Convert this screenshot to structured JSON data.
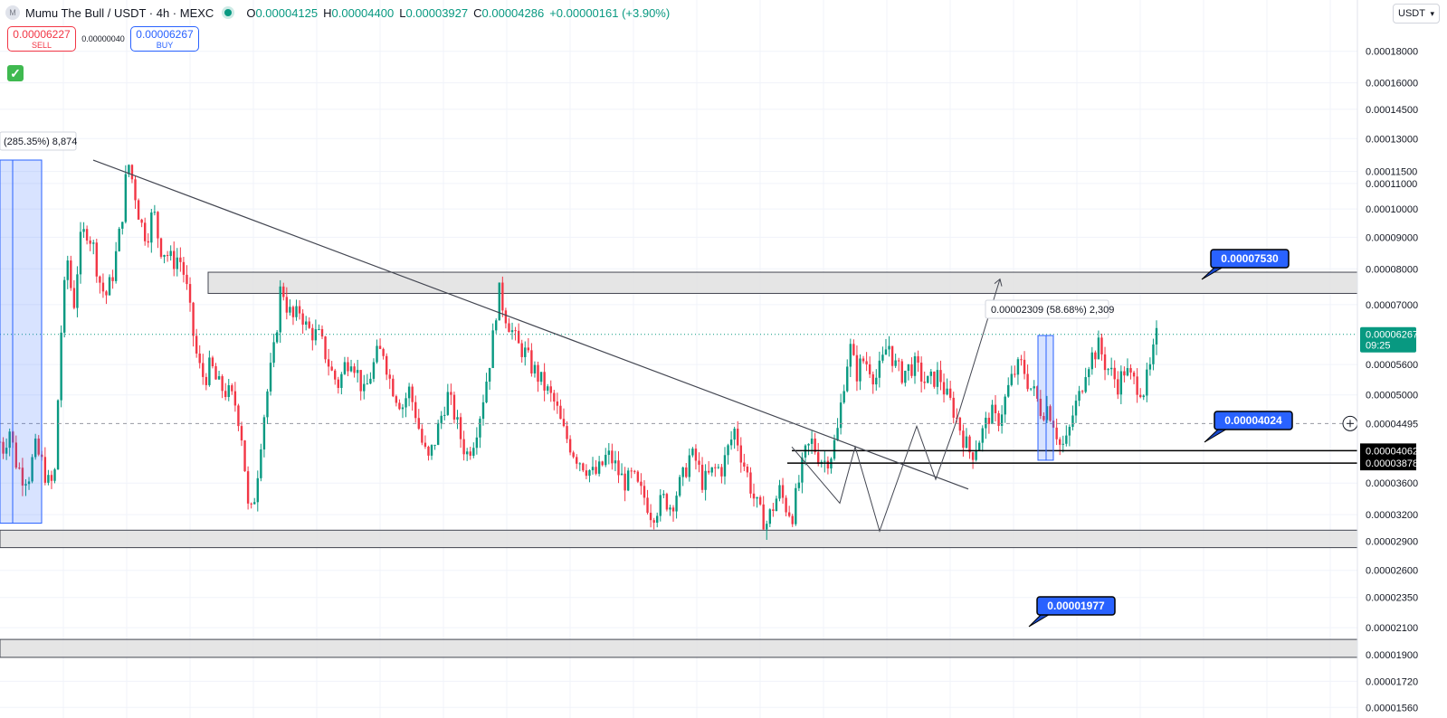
{
  "header": {
    "symbol_title": "Mumu The Bull / USDT · 4h · MEXC",
    "logo_letter": "M",
    "ohlc": {
      "o_label": "O",
      "o": "0.00004125",
      "h_label": "H",
      "h": "0.00004400",
      "l_label": "L",
      "l": "0.00003927",
      "c_label": "C",
      "c": "0.00004286",
      "change": "+0.00000161 (+3.90%)"
    }
  },
  "trade": {
    "sell_price": "0.00006227",
    "sell_label": "SELL",
    "spread": "0.00000040",
    "buy_price": "0.00006267",
    "buy_label": "BUY"
  },
  "currency_selector": {
    "label": "USDT",
    "icon": "chevron-down-icon"
  },
  "colors": {
    "up": "#089981",
    "down": "#f23645",
    "accent": "#2962ff",
    "zone": "#e0e0e0",
    "trendline": "#434651",
    "grid": "#f0f3fa"
  },
  "chart_data": {
    "type": "candlestick",
    "y_scale": "log",
    "ylim": [
      1.52e-05,
      0.000215
    ],
    "grid": true,
    "y_ticks": [
      "0.00018000",
      "0.00016000",
      "0.00014500",
      "0.00013000",
      "0.00011500",
      "0.00011000",
      "0.00010000",
      "0.00009000",
      "0.00008000",
      "0.00007000",
      "0.00005600",
      "0.00005000",
      "0.00003600",
      "0.00003200",
      "0.00002900",
      "0.00002600",
      "0.00002350",
      "0.00002100",
      "0.00001900",
      "0.00001720",
      "0.00001560"
    ],
    "y_tick_values": [
      0.00018,
      0.00016,
      0.000145,
      0.00013,
      0.000115,
      0.00011,
      0.0001,
      9e-05,
      8e-05,
      7e-05,
      5.6e-05,
      5e-05,
      3.6e-05,
      3.2e-05,
      2.9e-05,
      2.6e-05,
      2.35e-05,
      2.1e-05,
      1.9e-05,
      1.72e-05,
      1.56e-05
    ],
    "price_path": [
      [
        0.04,
        4.2e-05
      ],
      [
        0.05,
        4.1e-05
      ],
      [
        0.07,
        4.4e-05
      ],
      [
        0.09,
        3.9e-05
      ],
      [
        0.11,
        3.7e-05
      ],
      [
        0.13,
        3.7e-05
      ],
      [
        0.15,
        4.1e-05
      ],
      [
        0.17,
        3.9e-05
      ],
      [
        0.19,
        3.6e-05
      ],
      [
        0.21,
        3.6e-05
      ],
      [
        0.23,
        6.2e-05
      ],
      [
        0.25,
        8.4e-05
      ],
      [
        0.27,
        6.9e-05
      ],
      [
        0.29,
        8.8e-05
      ],
      [
        0.31,
        9.3e-05
      ],
      [
        0.33,
        8.8e-05
      ],
      [
        0.35,
        7.7e-05
      ],
      [
        0.37,
        7.2e-05
      ],
      [
        0.39,
        7.7e-05
      ],
      [
        0.42,
        9.5e-05
      ],
      [
        0.44,
        0.00012
      ],
      [
        0.46,
        0.000108
      ],
      [
        0.48,
        9.5e-05
      ],
      [
        0.5,
        9e-05
      ],
      [
        0.52,
        0.0001
      ],
      [
        0.54,
        8.7e-05
      ],
      [
        0.56,
        8.5e-05
      ],
      [
        0.58,
        8.2e-05
      ],
      [
        0.6,
        8.4e-05
      ],
      [
        0.62,
        7.7e-05
      ],
      [
        0.64,
        6.5e-05
      ],
      [
        0.66,
        5.6e-05
      ],
      [
        0.68,
        5.3e-05
      ],
      [
        0.7,
        5.6e-05
      ],
      [
        0.72,
        5.2e-05
      ],
      [
        0.74,
        5.1e-05
      ],
      [
        0.76,
        5e-05
      ],
      [
        0.78,
        4.8e-05
      ],
      [
        0.8,
        4.2e-05
      ],
      [
        0.82,
        3.1e-05
      ],
      [
        0.84,
        3.5e-05
      ],
      [
        0.86,
        4.4e-05
      ],
      [
        0.88,
        5.2e-05
      ],
      [
        0.9,
        6e-05
      ],
      [
        0.92,
        7.6e-05
      ],
      [
        0.94,
        6.9e-05
      ],
      [
        0.96,
        6.6e-05
      ],
      [
        0.98,
        6.9e-05
      ],
      [
        1.0,
        6.4e-05
      ],
      [
        1.02,
        6.3e-05
      ],
      [
        1.04,
        6.2e-05
      ],
      [
        1.06,
        5.8e-05
      ],
      [
        1.08,
        5.4e-05
      ],
      [
        1.1,
        5.2e-05
      ],
      [
        1.12,
        5.6e-05
      ],
      [
        1.14,
        5.8e-05
      ],
      [
        1.16,
        5.4e-05
      ],
      [
        1.18,
        5e-05
      ],
      [
        1.2,
        5.4e-05
      ],
      [
        1.22,
        5.8e-05
      ],
      [
        1.24,
        5.9e-05
      ],
      [
        1.26,
        5.3e-05
      ],
      [
        1.28,
        5e-05
      ],
      [
        1.3,
        4.8e-05
      ],
      [
        1.32,
        5.1e-05
      ],
      [
        1.34,
        4.7e-05
      ],
      [
        1.36,
        4.2e-05
      ],
      [
        1.38,
        3.9e-05
      ],
      [
        1.4,
        4.2e-05
      ],
      [
        1.42,
        4.6e-05
      ],
      [
        1.44,
        5e-05
      ],
      [
        1.46,
        4.7e-05
      ],
      [
        1.48,
        4.3e-05
      ],
      [
        1.5,
        4e-05
      ],
      [
        1.52,
        4.2e-05
      ],
      [
        1.54,
        4.6e-05
      ],
      [
        1.56,
        5.2e-05
      ],
      [
        1.58,
        6e-05
      ],
      [
        1.6,
        7.4e-05
      ],
      [
        1.62,
        6.8e-05
      ],
      [
        1.64,
        6.4e-05
      ],
      [
        1.66,
        6e-05
      ],
      [
        1.68,
        5.9e-05
      ],
      [
        1.7,
        5.6e-05
      ],
      [
        1.72,
        5.4e-05
      ],
      [
        1.74,
        5.2e-05
      ],
      [
        1.76,
        5e-05
      ],
      [
        1.78,
        4.8e-05
      ],
      [
        1.8,
        4.4e-05
      ],
      [
        1.82,
        4.2e-05
      ],
      [
        1.84,
        4e-05
      ],
      [
        1.86,
        3.9e-05
      ],
      [
        1.88,
        3.8e-05
      ],
      [
        1.9,
        3.7e-05
      ],
      [
        1.92,
        3.8e-05
      ],
      [
        1.94,
        4e-05
      ],
      [
        1.96,
        3.9e-05
      ],
      [
        1.98,
        3.7e-05
      ],
      [
        2.0,
        3.6e-05
      ],
      [
        2.02,
        3.7e-05
      ],
      [
        2.04,
        3.5e-05
      ],
      [
        2.06,
        3.4e-05
      ],
      [
        2.08,
        3.2e-05
      ],
      [
        2.1,
        3.3e-05
      ],
      [
        2.12,
        3.4e-05
      ],
      [
        2.14,
        3.3e-05
      ],
      [
        2.16,
        3.5e-05
      ],
      [
        2.18,
        3.7e-05
      ],
      [
        2.2,
        4e-05
      ],
      [
        2.22,
        3.9e-05
      ],
      [
        2.24,
        3.6e-05
      ],
      [
        2.26,
        3.7e-05
      ],
      [
        2.28,
        3.8e-05
      ],
      [
        2.3,
        3.8e-05
      ],
      [
        2.32,
        4.1e-05
      ],
      [
        2.34,
        4.4e-05
      ],
      [
        2.36,
        4e-05
      ],
      [
        2.38,
        3.7e-05
      ],
      [
        2.4,
        3.4e-05
      ],
      [
        2.42,
        3.2e-05
      ],
      [
        2.44,
        3.1e-05
      ],
      [
        2.46,
        3.3e-05
      ],
      [
        2.48,
        3.5e-05
      ],
      [
        2.5,
        3.3e-05
      ],
      [
        2.52,
        3.2e-05
      ],
      [
        2.54,
        3.6e-05
      ],
      [
        2.56,
        4e-05
      ],
      [
        2.58,
        4.2e-05
      ],
      [
        2.6,
        4e-05
      ],
      [
        2.62,
        3.9e-05
      ],
      [
        2.64,
        4e-05
      ],
      [
        2.66,
        4.3e-05
      ],
      [
        2.68,
        5.2e-05
      ],
      [
        2.7,
        6e-05
      ],
      [
        2.72,
        5.4e-05
      ],
      [
        2.74,
        5.7e-05
      ],
      [
        2.76,
        5.6e-05
      ],
      [
        2.78,
        5.3e-05
      ],
      [
        2.8,
        5.6e-05
      ],
      [
        2.82,
        6.1e-05
      ],
      [
        2.84,
        5.6e-05
      ],
      [
        2.86,
        5.4e-05
      ],
      [
        2.88,
        5.5e-05
      ],
      [
        2.9,
        5.6e-05
      ],
      [
        2.92,
        5.4e-05
      ],
      [
        2.94,
        5.2e-05
      ],
      [
        2.96,
        5.3e-05
      ],
      [
        2.98,
        5.4e-05
      ],
      [
        3.0,
        5e-05
      ],
      [
        3.02,
        4.8e-05
      ],
      [
        3.04,
        4.5e-05
      ],
      [
        3.06,
        4.2e-05
      ],
      [
        3.08,
        4e-05
      ],
      [
        3.1,
        4.2e-05
      ],
      [
        3.12,
        4.4e-05
      ],
      [
        3.14,
        4.7e-05
      ],
      [
        3.16,
        4.5e-05
      ],
      [
        3.18,
        4.8e-05
      ],
      [
        3.2,
        5.2e-05
      ],
      [
        3.22,
        5.5e-05
      ],
      [
        3.24,
        5.6e-05
      ],
      [
        3.26,
        5.2e-05
      ],
      [
        3.28,
        5e-05
      ],
      [
        3.3,
        4.7e-05
      ],
      [
        3.32,
        4.8e-05
      ],
      [
        3.34,
        4.5e-05
      ],
      [
        3.36,
        4.1e-05
      ],
      [
        3.38,
        4.2e-05
      ],
      [
        3.4,
        4.7e-05
      ],
      [
        3.42,
        5e-05
      ],
      [
        3.44,
        5.6e-05
      ],
      [
        3.46,
        5.8e-05
      ],
      [
        3.48,
        6e-05
      ],
      [
        3.5,
        5.6e-05
      ],
      [
        3.52,
        5.4e-05
      ],
      [
        3.54,
        5.2e-05
      ],
      [
        3.56,
        5.5e-05
      ],
      [
        3.58,
        5.3e-05
      ],
      [
        3.6,
        5.2e-05
      ],
      [
        3.62,
        5.1e-05
      ],
      [
        3.64,
        5.5e-05
      ],
      [
        3.66,
        6.2e-05
      ]
    ],
    "horizontal_zones": [
      {
        "low": 7.3e-05,
        "high": 7.9e-05
      },
      {
        "low": 2.83e-05,
        "high": 3.02e-05
      },
      {
        "low": 1.88e-05,
        "high": 2.01e-05
      }
    ],
    "horizontal_levels": [
      {
        "value": 4.062e-05,
        "label": "0.00004062"
      },
      {
        "value": 3.878e-05,
        "label": "0.00003878"
      }
    ],
    "current_price": {
      "value": 6.267e-05,
      "label": "0.00006267",
      "countdown": "09:25"
    },
    "crosshair_price": {
      "value": 4.495e-05,
      "label": "0.00004495"
    },
    "callouts": [
      {
        "label": "0.00007530",
        "value": 7.53e-05
      },
      {
        "label": "0.00004024",
        "value": 4.024e-05
      },
      {
        "label": "0.00001977",
        "value": 1.977e-05
      }
    ],
    "measures": [
      {
        "label": "(285.35%) 8,874",
        "from": 3.1e-05,
        "to": 0.00012
      },
      {
        "label": "0.00002309 (58.68%) 2,309",
        "from": 3.92e-05,
        "to": 6.24e-05
      }
    ],
    "trendline": {
      "from": 0.00012,
      "to": 3.52e-05
    },
    "projection_path": [
      4.12e-05,
      3.34e-05,
      4.12e-05,
      3.01e-05,
      4.45e-05,
      3.65e-05,
      4.45e-05,
      7.7e-05
    ]
  }
}
